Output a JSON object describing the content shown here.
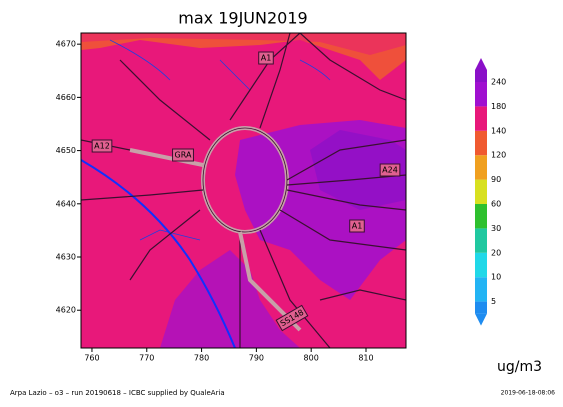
{
  "title": "max 19JUN2019",
  "map": {
    "xlim": [
      758,
      817.3
    ],
    "ylim": [
      4612.9,
      4672.1
    ],
    "xticks": [
      760,
      770,
      780,
      790,
      800,
      810
    ],
    "yticks": [
      4620,
      4630,
      4640,
      4650,
      4660,
      4670
    ],
    "road_labels": [
      "A1",
      "A12",
      "GRA",
      "A24",
      "A1",
      "SS148"
    ]
  },
  "colorbar": {
    "levels": [
      5,
      10,
      20,
      30,
      60,
      90,
      120,
      140,
      180,
      240
    ],
    "colors": [
      "#1e8cf0",
      "#22b4f4",
      "#20d8e8",
      "#20c8a0",
      "#2ec02e",
      "#d8e020",
      "#f0a020",
      "#f05a30",
      "#e8187a",
      "#a010d0",
      "#8a10c8"
    ],
    "unit": "ug/m3"
  },
  "footer": {
    "credit": "Arpa Lazio – o3 – run 20190618 – ICBC supplied by QualeAria",
    "timestamp": "2019-06-18-08:06"
  }
}
